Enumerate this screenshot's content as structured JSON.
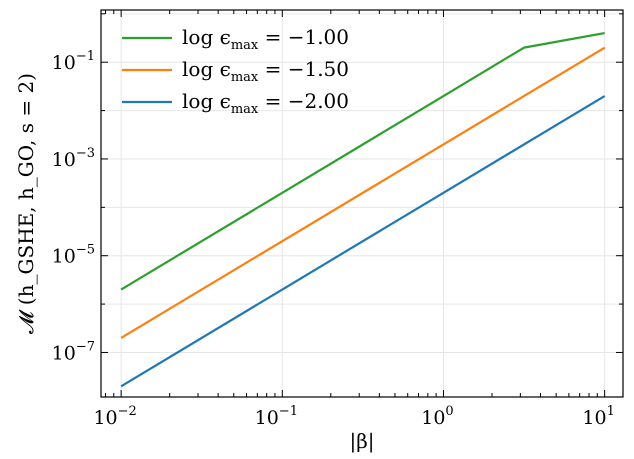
{
  "chart_data": {
    "type": "line",
    "xscale": "log",
    "yscale": "log",
    "xlabel": "|β|",
    "ylabel": "𝓜 (h_GSHE, h_GO, s = 2)",
    "xlim": [
      0.0075,
      13
    ],
    "ylim": [
      1.2e-08,
      1.2
    ],
    "grid": true,
    "legend_position": "top-left",
    "x_ticks": [
      {
        "base": "10",
        "exp": "−2",
        "value": 0.01
      },
      {
        "base": "10",
        "exp": "−1",
        "value": 0.1
      },
      {
        "base": "10",
        "exp": "0",
        "value": 1
      },
      {
        "base": "10",
        "exp": "1",
        "value": 10
      }
    ],
    "y_ticks": [
      {
        "base": "10",
        "exp": "−1",
        "value": 0.1
      },
      {
        "base": "10",
        "exp": "−3",
        "value": 0.001
      },
      {
        "base": "10",
        "exp": "−5",
        "value": 1e-05
      },
      {
        "base": "10",
        "exp": "−7",
        "value": 1e-07
      }
    ],
    "series": [
      {
        "name": "log ϵmax = −1.00",
        "legend_main": "log ϵ",
        "legend_sub": "max",
        "legend_value": " = −1.00",
        "color": "#2ca02c",
        "x": [
          0.01,
          0.1,
          1,
          3.16,
          10
        ],
        "y": [
          2e-06,
          0.0002,
          0.02,
          0.2,
          0.4
        ]
      },
      {
        "name": "log ϵmax = −1.50",
        "legend_main": "log ϵ",
        "legend_sub": "max",
        "legend_value": " = −1.50",
        "color": "#ff7f0e",
        "x": [
          0.01,
          0.1,
          1,
          10
        ],
        "y": [
          2e-07,
          2e-05,
          0.002,
          0.2
        ]
      },
      {
        "name": "log ϵmax = −2.00",
        "legend_main": "log ϵ",
        "legend_sub": "max",
        "legend_value": " = −2.00",
        "color": "#1f77b4",
        "x": [
          0.01,
          0.1,
          1,
          10
        ],
        "y": [
          2e-08,
          2e-06,
          0.0002,
          0.02
        ]
      }
    ]
  }
}
